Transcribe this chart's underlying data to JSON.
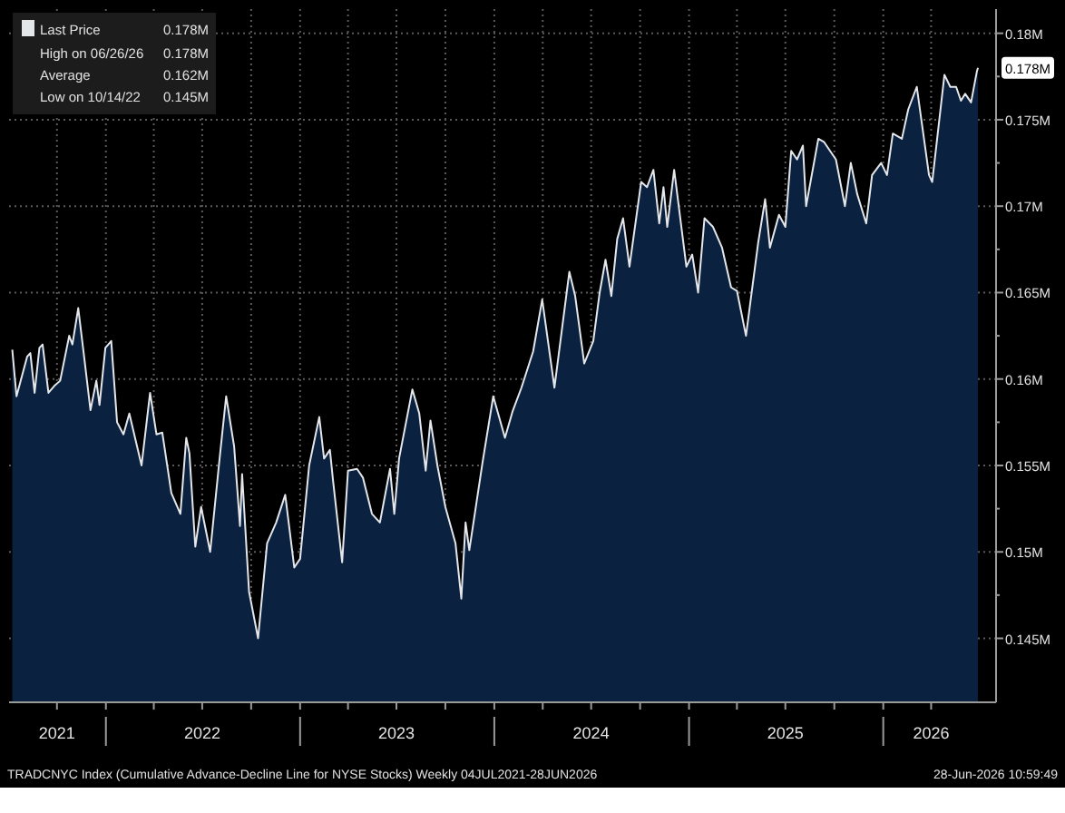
{
  "chart_data": {
    "type": "area",
    "legend": "top left",
    "grid": true,
    "marker": "none",
    "line_style": "solid",
    "annotations": [
      "0.178M",
      "High on 06/26/26 0.178M",
      "Average 0.162M",
      "Low on 10/14/22 0.145M",
      {
        "text": "0.178M",
        "x": "2026-06-28",
        "y": 0.178
      },
      "TRADCNYC Index (Cumulative Advance-Decline Line for NYSE Stocks) Weekly 04JUL2021-28JUN2026",
      "28-Jun-2026 10:59:49"
    ],
    "xlim": [
      "2021-07-03",
      "2026-08-01"
    ],
    "xticks": [
      {
        "value": "2021-10-01",
        "label": "2021"
      },
      {
        "value": "2022-01-01",
        "label": null
      },
      {
        "value": "2022-04-01",
        "label": null
      },
      {
        "value": "2022-07-01",
        "label": "2022"
      },
      {
        "value": "2022-10-01",
        "label": null
      },
      {
        "value": "2023-01-01",
        "label": null
      },
      {
        "value": "2023-04-01",
        "label": null
      },
      {
        "value": "2023-07-01",
        "label": "2023"
      },
      {
        "value": "2023-10-01",
        "label": null
      },
      {
        "value": "2024-01-01",
        "label": null
      },
      {
        "value": "2024-04-01",
        "label": null
      },
      {
        "value": "2024-07-01",
        "label": "2024"
      },
      {
        "value": "2024-10-01",
        "label": null
      },
      {
        "value": "2025-01-01",
        "label": null
      },
      {
        "value": "2025-04-01",
        "label": null
      },
      {
        "value": "2025-07-01",
        "label": "2025"
      },
      {
        "value": "2025-10-01",
        "label": null
      },
      {
        "value": "2026-01-01",
        "label": null
      },
      {
        "value": "2026-04-01",
        "label": "2026"
      }
    ],
    "ylim": [
      0.1413,
      0.1814
    ],
    "yticks": [
      {
        "value": 0.145,
        "label": "0.145M"
      },
      {
        "value": 0.1475,
        "label": null
      },
      {
        "value": 0.15,
        "label": "0.15M"
      },
      {
        "value": 0.1525,
        "label": null
      },
      {
        "value": 0.155,
        "label": "0.155M"
      },
      {
        "value": 0.1575,
        "label": null
      },
      {
        "value": 0.16,
        "label": "0.16M"
      },
      {
        "value": 0.1625,
        "label": null
      },
      {
        "value": 0.165,
        "label": "0.165M"
      },
      {
        "value": 0.1675,
        "label": null
      },
      {
        "value": 0.17,
        "label": "0.17M"
      },
      {
        "value": 0.1725,
        "label": null
      },
      {
        "value": 0.175,
        "label": "0.175M"
      },
      {
        "value": 0.1775,
        "label": null
      },
      {
        "value": 0.18,
        "label": "0.18M"
      }
    ],
    "series": [
      {
        "name": "Last Price",
        "color": "#e4e6ea",
        "x": [
          "2021-07-09",
          "2021-07-17",
          "2021-08-06",
          "2021-08-12",
          "2021-08-20",
          "2021-08-29",
          "2021-09-04",
          "2021-09-15",
          "2021-09-26",
          "2021-10-07",
          "2021-10-24",
          "2021-10-30",
          "2021-11-10",
          "2021-11-21",
          "2021-12-03",
          "2021-12-14",
          "2021-12-20",
          "2021-12-31",
          "2022-01-11",
          "2022-01-22",
          "2022-02-03",
          "2022-02-14",
          "2022-03-09",
          "2022-03-25",
          "2022-04-06",
          "2022-04-17",
          "2022-05-04",
          "2022-05-21",
          "2022-06-01",
          "2022-06-07",
          "2022-06-18",
          "2022-06-29",
          "2022-07-16",
          "2022-08-02",
          "2022-08-15",
          "2022-08-30",
          "2022-09-10",
          "2022-09-14",
          "2022-09-27",
          "2022-10-14",
          "2022-10-31",
          "2022-11-17",
          "2022-12-04",
          "2022-12-21",
          "2023-01-01",
          "2023-01-18",
          "2023-02-06",
          "2023-02-15",
          "2023-02-26",
          "2023-03-04",
          "2023-03-21",
          "2023-04-01",
          "2023-04-18",
          "2023-04-29",
          "2023-05-16",
          "2023-05-31",
          "2023-06-19",
          "2023-06-27",
          "2023-07-06",
          "2023-07-31",
          "2023-08-13",
          "2023-08-25",
          "2023-09-03",
          "2023-09-16",
          "2023-10-01",
          "2023-10-20",
          "2023-10-31",
          "2023-11-08",
          "2023-11-15",
          "2023-12-10",
          "2023-12-30",
          "2024-01-21",
          "2024-02-04",
          "2024-02-21",
          "2024-03-14",
          "2024-03-31",
          "2024-04-23",
          "2024-05-21",
          "2024-06-01",
          "2024-06-18",
          "2024-07-05",
          "2024-07-17",
          "2024-07-28",
          "2024-08-08",
          "2024-08-19",
          "2024-08-30",
          "2024-09-11",
          "2024-10-03",
          "2024-10-14",
          "2024-10-26",
          "2024-11-06",
          "2024-11-14",
          "2024-11-21",
          "2024-12-04",
          "2024-12-27",
          "2025-01-07",
          "2025-01-18",
          "2025-01-30",
          "2025-02-15",
          "2025-03-04",
          "2025-03-21",
          "2025-04-01",
          "2025-04-18",
          "2025-05-11",
          "2025-05-24",
          "2025-06-02",
          "2025-06-19",
          "2025-07-01",
          "2025-07-12",
          "2025-07-23",
          "2025-08-03",
          "2025-08-09",
          "2025-09-01",
          "2025-09-12",
          "2025-10-04",
          "2025-10-21",
          "2025-11-01",
          "2025-11-13",
          "2025-11-30",
          "2025-12-11",
          "2025-12-28",
          "2026-01-08",
          "2026-01-19",
          "2026-02-05",
          "2026-02-17",
          "2026-03-05",
          "2026-03-28",
          "2026-04-03",
          "2026-04-26",
          "2026-05-07",
          "2026-05-18",
          "2026-05-27",
          "2026-06-04",
          "2026-06-15",
          "2026-06-26",
          "2026-06-28"
        ],
        "values": [
          0.1617,
          0.159,
          0.1613,
          0.1615,
          0.1592,
          0.1618,
          0.162,
          0.1592,
          0.1596,
          0.1599,
          0.1625,
          0.162,
          0.1641,
          0.1613,
          0.1582,
          0.1599,
          0.1585,
          0.1618,
          0.1622,
          0.1575,
          0.1568,
          0.158,
          0.155,
          0.1592,
          0.1568,
          0.1569,
          0.1534,
          0.1522,
          0.1566,
          0.1557,
          0.1503,
          0.1526,
          0.15,
          0.1552,
          0.159,
          0.1561,
          0.1515,
          0.1545,
          0.1477,
          0.145,
          0.1505,
          0.1517,
          0.1533,
          0.1491,
          0.1496,
          0.155,
          0.1578,
          0.1554,
          0.1559,
          0.1541,
          0.1494,
          0.1547,
          0.1548,
          0.1543,
          0.1522,
          0.1517,
          0.1548,
          0.1522,
          0.1554,
          0.1594,
          0.158,
          0.1547,
          0.1576,
          0.155,
          0.1526,
          0.1505,
          0.1473,
          0.1517,
          0.1501,
          0.1552,
          0.159,
          0.1566,
          0.1581,
          0.1595,
          0.1616,
          0.1646,
          0.1595,
          0.1662,
          0.1648,
          0.1609,
          0.1622,
          0.165,
          0.1669,
          0.1648,
          0.1681,
          0.1693,
          0.1665,
          0.1714,
          0.1711,
          0.1721,
          0.169,
          0.1711,
          0.1688,
          0.1721,
          0.1665,
          0.1672,
          0.165,
          0.1693,
          0.1688,
          0.1676,
          0.1653,
          0.1651,
          0.1625,
          0.1679,
          0.1704,
          0.1676,
          0.1695,
          0.1688,
          0.1732,
          0.1727,
          0.1735,
          0.17,
          0.1739,
          0.1737,
          0.1727,
          0.17,
          0.1725,
          0.1707,
          0.169,
          0.1718,
          0.1725,
          0.1718,
          0.1742,
          0.1739,
          0.1756,
          0.1769,
          0.1718,
          0.1714,
          0.1776,
          0.1769,
          0.1769,
          0.1761,
          0.1765,
          0.176,
          0.1778,
          0.178
        ]
      }
    ]
  }
}
